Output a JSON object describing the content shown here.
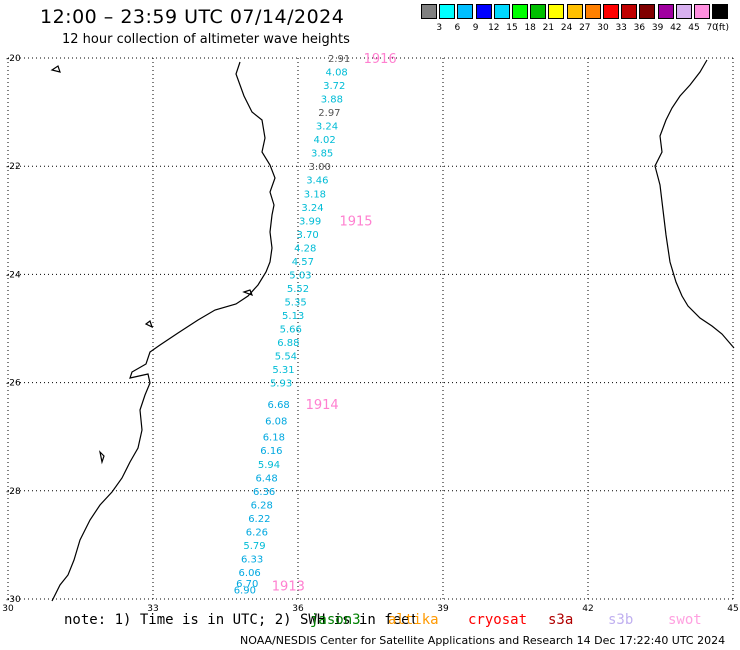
{
  "header": {
    "title": "12:00 – 23:59 UTC 07/14/2024",
    "subtitle": "12 hour collection of altimeter wave heights"
  },
  "scale": {
    "colors": [
      "#808080",
      "#00ffff",
      "#00bfff",
      "#0000ff",
      "#00d9ff",
      "#00ff00",
      "#00bf00",
      "#ffff00",
      "#ffc000",
      "#ff8000",
      "#ff0000",
      "#c00000",
      "#800000",
      "#a000a0",
      "#d8b0f0",
      "#ff90e0",
      "#000000"
    ],
    "labels": [
      "3",
      "6",
      "9",
      "12",
      "15",
      "18",
      "21",
      "24",
      "27",
      "30",
      "33",
      "36",
      "39",
      "42",
      "45",
      "70",
      "(ft)"
    ]
  },
  "map": {
    "lon_range": [
      30,
      45
    ],
    "lat_range": [
      -30,
      -20
    ],
    "lon_ticks": [
      "30",
      "33",
      "36",
      "39",
      "42",
      "45"
    ],
    "lat_ticks": [
      "-20",
      "-22",
      "-24",
      "-26",
      "-28",
      "-30"
    ]
  },
  "track_labels": [
    {
      "text": "1916",
      "lon": 37.7,
      "lat": -20.0
    },
    {
      "text": "1915",
      "lon": 37.2,
      "lat": -23.0
    },
    {
      "text": "1914",
      "lon": 36.5,
      "lat": -26.4
    },
    {
      "text": "1913",
      "lon": 35.8,
      "lat": -29.75
    }
  ],
  "observations": [
    {
      "value": "2.91",
      "lon": 36.85,
      "lat": -20.0,
      "color": "#555555"
    },
    {
      "value": "4.08",
      "lon": 36.8,
      "lat": -20.25,
      "color": "#00bcd6"
    },
    {
      "value": "3.72",
      "lon": 36.75,
      "lat": -20.5,
      "color": "#00bcd6"
    },
    {
      "value": "3.88",
      "lon": 36.7,
      "lat": -20.75,
      "color": "#00bcd6"
    },
    {
      "value": "2.97",
      "lon": 36.65,
      "lat": -21.0,
      "color": "#555555"
    },
    {
      "value": "3.24",
      "lon": 36.6,
      "lat": -21.25,
      "color": "#00bcd6"
    },
    {
      "value": "4.02",
      "lon": 36.55,
      "lat": -21.5,
      "color": "#00bcd6"
    },
    {
      "value": "3.85",
      "lon": 36.5,
      "lat": -21.75,
      "color": "#00bcd6"
    },
    {
      "value": "3.00",
      "lon": 36.45,
      "lat": -22.0,
      "color": "#555555"
    },
    {
      "value": "3.46",
      "lon": 36.4,
      "lat": -22.25,
      "color": "#00bcd6"
    },
    {
      "value": "3.18",
      "lon": 36.35,
      "lat": -22.5,
      "color": "#00bcd6"
    },
    {
      "value": "3.24",
      "lon": 36.3,
      "lat": -22.75,
      "color": "#00bcd6"
    },
    {
      "value": "3.99",
      "lon": 36.25,
      "lat": -23.0,
      "color": "#00bcd6"
    },
    {
      "value": "3.70",
      "lon": 36.2,
      "lat": -23.25,
      "color": "#00bcd6"
    },
    {
      "value": "4.28",
      "lon": 36.15,
      "lat": -23.5,
      "color": "#00bcd6"
    },
    {
      "value": "4.57",
      "lon": 36.1,
      "lat": -23.75,
      "color": "#00bcd6"
    },
    {
      "value": "5.03",
      "lon": 36.05,
      "lat": -24.0,
      "color": "#00bcd6"
    },
    {
      "value": "5.52",
      "lon": 36.0,
      "lat": -24.25,
      "color": "#00bcd6"
    },
    {
      "value": "5.35",
      "lon": 35.95,
      "lat": -24.5,
      "color": "#00bcd6"
    },
    {
      "value": "5.13",
      "lon": 35.9,
      "lat": -24.75,
      "color": "#00bcd6"
    },
    {
      "value": "5.66",
      "lon": 35.85,
      "lat": -25.0,
      "color": "#00bcd6"
    },
    {
      "value": "6.88",
      "lon": 35.8,
      "lat": -25.25,
      "color": "#00bcd6"
    },
    {
      "value": "5.54",
      "lon": 35.75,
      "lat": -25.5,
      "color": "#00bcd6"
    },
    {
      "value": "5.31",
      "lon": 35.7,
      "lat": -25.75,
      "color": "#00bcd6"
    },
    {
      "value": "5.93",
      "lon": 35.65,
      "lat": -26.0,
      "color": "#00bcd6"
    },
    {
      "value": "6.68",
      "lon": 35.6,
      "lat": -26.4,
      "color": "#00a8e0"
    },
    {
      "value": "6.08",
      "lon": 35.55,
      "lat": -26.7,
      "color": "#00a8e0"
    },
    {
      "value": "6.18",
      "lon": 35.5,
      "lat": -27.0,
      "color": "#00a8e0"
    },
    {
      "value": "6.16",
      "lon": 35.45,
      "lat": -27.25,
      "color": "#00a8e0"
    },
    {
      "value": "5.94",
      "lon": 35.4,
      "lat": -27.5,
      "color": "#00bcd6"
    },
    {
      "value": "6.48",
      "lon": 35.35,
      "lat": -27.75,
      "color": "#00a8e0"
    },
    {
      "value": "6.36",
      "lon": 35.3,
      "lat": -28.0,
      "color": "#00a8e0"
    },
    {
      "value": "6.28",
      "lon": 35.25,
      "lat": -28.25,
      "color": "#00a8e0"
    },
    {
      "value": "6.22",
      "lon": 35.2,
      "lat": -28.5,
      "color": "#00a8e0"
    },
    {
      "value": "6.26",
      "lon": 35.15,
      "lat": -28.75,
      "color": "#00a8e0"
    },
    {
      "value": "5.79",
      "lon": 35.1,
      "lat": -29.0,
      "color": "#00bcd6"
    },
    {
      "value": "6.33",
      "lon": 35.05,
      "lat": -29.25,
      "color": "#00a8e0"
    },
    {
      "value": "6.06",
      "lon": 35.0,
      "lat": -29.5,
      "color": "#00a8e0"
    },
    {
      "value": "6.70",
      "lon": 34.95,
      "lat": -29.7,
      "color": "#00a8e0"
    },
    {
      "value": "6.90",
      "lon": 34.9,
      "lat": -29.82,
      "color": "#00a8e0"
    }
  ],
  "footer": {
    "note": "note: 1) Time is in UTC; 2) SWH is in feet",
    "satellites": [
      {
        "name": "jason3",
        "color": "#008000"
      },
      {
        "name": "altika",
        "color": "#ff9900"
      },
      {
        "name": "cryosat",
        "color": "#ff0000"
      },
      {
        "name": "s3a",
        "color": "#b00000"
      },
      {
        "name": "s3b",
        "color": "#c0b0f0"
      },
      {
        "name": "swot",
        "color": "#ffa0e0"
      }
    ],
    "credit": "NOAA/NESDIS Center for Satellite Applications and Research    14 Dec 17:22:40 UTC 2024"
  }
}
